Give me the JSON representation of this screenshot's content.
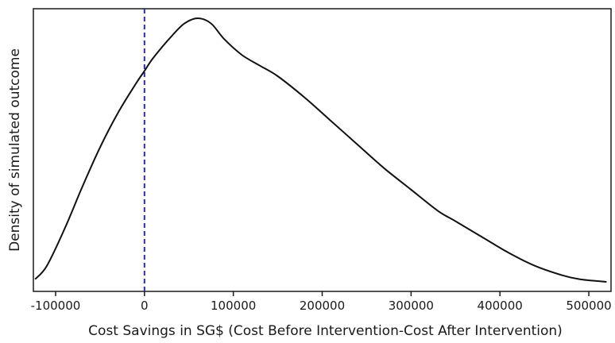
{
  "chart_data": {
    "type": "line",
    "xlabel": "Cost Savings in SG$ (Cost Before Intervention-Cost After Intervention)",
    "ylabel": "Density of simulated outcome",
    "xlim": [
      -125000,
      525000
    ],
    "ylim": [
      0,
      1
    ],
    "x_ticks": [
      -100000,
      0,
      100000,
      200000,
      300000,
      400000,
      500000
    ],
    "x_tick_labels": [
      "-100000",
      "0",
      "100000",
      "200000",
      "300000",
      "400000",
      "500000"
    ],
    "y_ticks": [],
    "grid": false,
    "legend": "none",
    "reference_lines": [
      {
        "axis": "x",
        "value": 0,
        "style": "dashed",
        "color": "#2b2bb0"
      }
    ],
    "series": [
      {
        "color": "#111111",
        "points": [
          [
            -123000,
            0.01
          ],
          [
            -110000,
            0.06
          ],
          [
            -90000,
            0.2
          ],
          [
            -70000,
            0.36
          ],
          [
            -50000,
            0.51
          ],
          [
            -30000,
            0.64
          ],
          [
            -10000,
            0.75
          ],
          [
            0,
            0.8
          ],
          [
            10000,
            0.85
          ],
          [
            30000,
            0.93
          ],
          [
            45000,
            0.98
          ],
          [
            60000,
            1.0
          ],
          [
            75000,
            0.98
          ],
          [
            90000,
            0.92
          ],
          [
            110000,
            0.86
          ],
          [
            130000,
            0.82
          ],
          [
            150000,
            0.78
          ],
          [
            180000,
            0.7
          ],
          [
            210000,
            0.61
          ],
          [
            240000,
            0.52
          ],
          [
            270000,
            0.43
          ],
          [
            300000,
            0.35
          ],
          [
            330000,
            0.27
          ],
          [
            350000,
            0.23
          ],
          [
            380000,
            0.17
          ],
          [
            410000,
            0.11
          ],
          [
            440000,
            0.06
          ],
          [
            470000,
            0.025
          ],
          [
            490000,
            0.01
          ],
          [
            520000,
            0.0
          ]
        ]
      }
    ]
  }
}
